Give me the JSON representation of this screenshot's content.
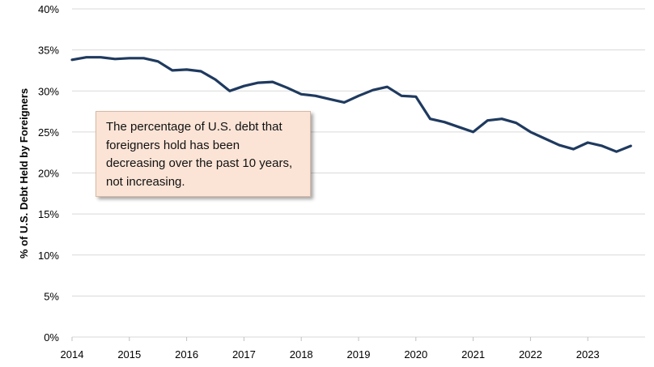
{
  "chart_data": {
    "type": "line",
    "title": "",
    "xlabel": "",
    "ylabel": "% of U.S. Debt Held by Foreigners",
    "ylim": [
      0,
      40
    ],
    "xlim": [
      2014,
      2024
    ],
    "y_ticks": [
      "0%",
      "5%",
      "10%",
      "15%",
      "20%",
      "25%",
      "30%",
      "35%",
      "40%"
    ],
    "x_ticks": [
      "2014",
      "2015",
      "2016",
      "2017",
      "2018",
      "2019",
      "2020",
      "2021",
      "2022",
      "2023"
    ],
    "grid": "horizontal",
    "series": [
      {
        "color": "#1f3a5f",
        "x": [
          2014.0,
          2014.25,
          2014.5,
          2014.75,
          2015.0,
          2015.25,
          2015.5,
          2015.75,
          2016.0,
          2016.25,
          2016.5,
          2016.75,
          2017.0,
          2017.25,
          2017.5,
          2017.75,
          2018.0,
          2018.25,
          2018.5,
          2018.75,
          2019.0,
          2019.25,
          2019.5,
          2019.75,
          2020.0,
          2020.25,
          2020.5,
          2020.75,
          2021.0,
          2021.25,
          2021.5,
          2021.75,
          2022.0,
          2022.25,
          2022.5,
          2022.75,
          2023.0,
          2023.25,
          2023.5,
          2023.75
        ],
        "values": [
          33.8,
          34.1,
          34.1,
          33.9,
          34.0,
          34.0,
          33.6,
          32.5,
          32.6,
          32.4,
          31.4,
          30.0,
          30.6,
          31.0,
          31.1,
          30.4,
          29.6,
          29.4,
          29.0,
          28.6,
          29.4,
          30.1,
          30.5,
          29.4,
          29.3,
          26.6,
          26.2,
          25.6,
          25.0,
          26.4,
          26.6,
          26.1,
          25.0,
          24.2,
          23.4,
          22.9,
          23.7,
          23.3,
          22.6,
          23.3
        ]
      }
    ],
    "annotation": "The percentage of U.S. debt that foreigners hold has been decreasing over the past 10 years, not increasing."
  }
}
